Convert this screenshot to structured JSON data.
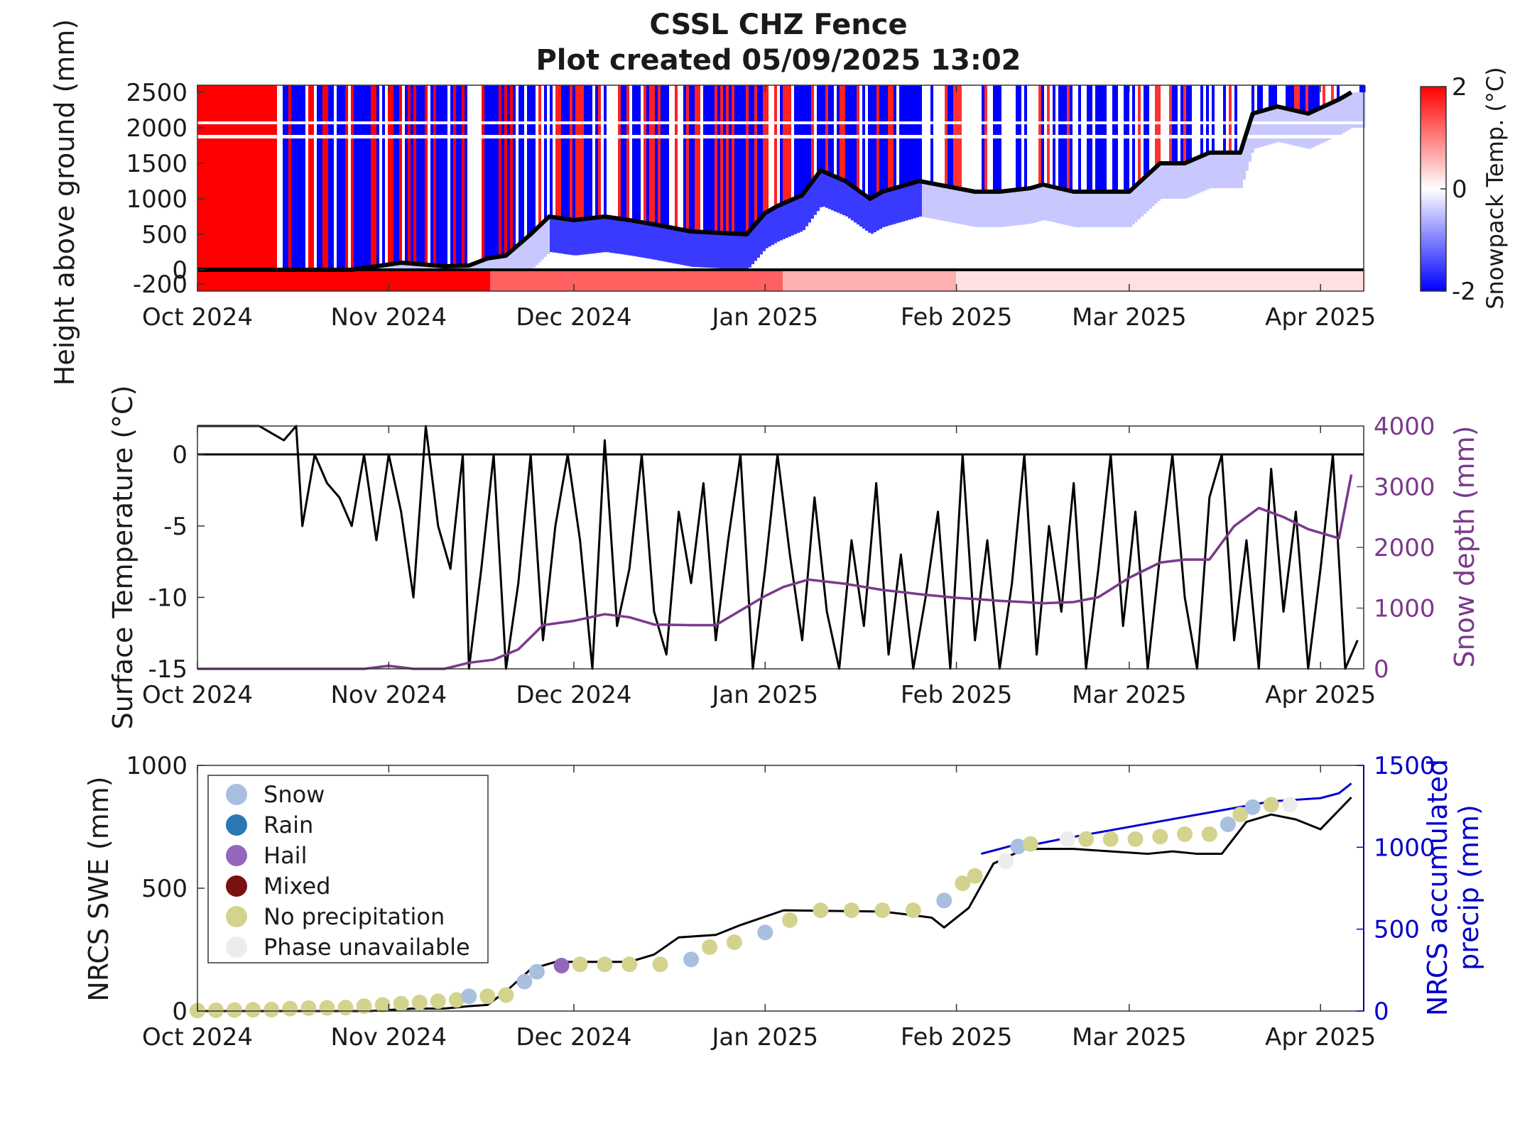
{
  "title_line1": "CSSL CHZ Fence",
  "title_line2": "Plot created 05/09/2025 13:02",
  "months": [
    "Oct 2024",
    "Nov 2024",
    "Dec 2024",
    "Jan 2025",
    "Feb 2025",
    "Mar 2025",
    "Apr 2025"
  ],
  "colors": {
    "warm": "#ff0000",
    "cold": "#0000ff",
    "snow_depth": "#7a3a8c",
    "precip": "#0000cc",
    "swe": "#000000"
  },
  "chart_data": [
    {
      "type": "heatmap",
      "ylabel": "Height above ground (mm)",
      "x_range": [
        "2024-10-01",
        "2025-04-08"
      ],
      "ylim": [
        -300,
        2600
      ],
      "yticks": [
        -200,
        0,
        500,
        1000,
        1500,
        2000,
        2500
      ],
      "colorbar": {
        "label": "Snowpack Temp. (°C)",
        "min": -2,
        "max": 2,
        "ticks": [
          -2,
          0,
          2
        ],
        "colors": [
          "#0000ff",
          "#ffffff",
          "#ff0000"
        ]
      },
      "snow_depth_line": {
        "x": [
          "2024-10-01",
          "2024-10-26",
          "2024-10-30",
          "2024-11-03",
          "2024-11-10",
          "2024-11-14",
          "2024-11-17",
          "2024-11-20",
          "2024-11-24",
          "2024-11-27",
          "2024-12-01",
          "2024-12-06",
          "2024-12-10",
          "2024-12-14",
          "2024-12-20",
          "2024-12-29",
          "2025-01-01",
          "2025-01-03",
          "2025-01-07",
          "2025-01-10",
          "2025-01-14",
          "2025-01-18",
          "2025-01-20",
          "2025-01-26",
          "2025-02-01",
          "2025-02-04",
          "2025-02-08",
          "2025-02-13",
          "2025-02-15",
          "2025-02-20",
          "2025-02-24",
          "2025-03-01",
          "2025-03-06",
          "2025-03-10",
          "2025-03-14",
          "2025-03-19",
          "2025-03-21",
          "2025-03-25",
          "2025-03-30",
          "2025-04-04",
          "2025-04-06"
        ],
        "y": [
          0,
          0,
          50,
          100,
          50,
          60,
          160,
          200,
          500,
          750,
          700,
          750,
          700,
          640,
          540,
          500,
          800,
          900,
          1050,
          1400,
          1250,
          1000,
          1100,
          1250,
          1150,
          1100,
          1100,
          1150,
          1200,
          1100,
          1100,
          1100,
          1500,
          1500,
          1650,
          1650,
          2200,
          2300,
          2200,
          2400,
          2500
        ]
      }
    },
    {
      "type": "line",
      "ylabel": "Surface Temperature (°C)",
      "ylabel_right": "Snow depth (mm)",
      "x_range": [
        "2024-10-01",
        "2025-04-08"
      ],
      "ylim": [
        -15,
        2
      ],
      "yticks": [
        -15,
        -10,
        -5,
        0
      ],
      "ylim_right": [
        0,
        4000
      ],
      "yticks_right": [
        0,
        1000,
        2000,
        3000,
        4000
      ],
      "snow_depth": {
        "x": [
          "2024-10-01",
          "2024-10-28",
          "2024-11-01",
          "2024-11-05",
          "2024-11-10",
          "2024-11-14",
          "2024-11-18",
          "2024-11-22",
          "2024-11-26",
          "2024-12-01",
          "2024-12-06",
          "2024-12-10",
          "2024-12-14",
          "2024-12-20",
          "2024-12-24",
          "2025-01-01",
          "2025-01-04",
          "2025-01-08",
          "2025-01-14",
          "2025-01-20",
          "2025-01-26",
          "2025-02-01",
          "2025-02-04",
          "2025-02-08",
          "2025-02-12",
          "2025-02-15",
          "2025-02-20",
          "2025-02-24",
          "2025-03-01",
          "2025-03-06",
          "2025-03-10",
          "2025-03-14",
          "2025-03-18",
          "2025-03-22",
          "2025-03-26",
          "2025-03-30",
          "2025-04-04",
          "2025-04-06"
        ],
        "y": [
          0,
          0,
          50,
          0,
          0,
          100,
          150,
          320,
          720,
          790,
          900,
          850,
          730,
          720,
          720,
          1200,
          1350,
          1470,
          1400,
          1300,
          1230,
          1170,
          1150,
          1120,
          1100,
          1080,
          1100,
          1180,
          1500,
          1750,
          1800,
          1800,
          2350,
          2650,
          2500,
          2300,
          2150,
          3200
        ]
      },
      "surface_temperature": {
        "x": [
          "2024-10-01",
          "2024-10-11",
          "2024-10-13",
          "2024-10-15",
          "2024-10-17",
          "2024-10-18",
          "2024-10-20",
          "2024-10-22",
          "2024-10-24",
          "2024-10-26",
          "2024-10-28",
          "2024-10-30",
          "2024-11-01",
          "2024-11-03",
          "2024-11-05",
          "2024-11-07",
          "2024-11-09",
          "2024-11-11",
          "2024-11-13",
          "2024-11-14",
          "2024-11-16",
          "2024-11-18",
          "2024-11-20",
          "2024-11-22",
          "2024-11-24",
          "2024-11-26",
          "2024-11-28",
          "2024-11-30",
          "2024-12-02",
          "2024-12-04",
          "2024-12-06",
          "2024-12-08",
          "2024-12-10",
          "2024-12-12",
          "2024-12-14",
          "2024-12-16",
          "2024-12-18",
          "2024-12-20",
          "2024-12-22",
          "2024-12-24",
          "2024-12-26",
          "2024-12-28",
          "2024-12-30",
          "2025-01-01",
          "2025-01-03",
          "2025-01-05",
          "2025-01-07",
          "2025-01-09",
          "2025-01-11",
          "2025-01-13",
          "2025-01-15",
          "2025-01-17",
          "2025-01-19",
          "2025-01-21",
          "2025-01-23",
          "2025-01-25",
          "2025-01-27",
          "2025-01-29",
          "2025-01-31",
          "2025-02-02",
          "2025-02-04",
          "2025-02-06",
          "2025-02-08",
          "2025-02-10",
          "2025-02-12",
          "2025-02-14",
          "2025-02-16",
          "2025-02-18",
          "2025-02-20",
          "2025-02-22",
          "2025-02-24",
          "2025-02-26",
          "2025-02-28",
          "2025-03-02",
          "2025-03-04",
          "2025-03-06",
          "2025-03-08",
          "2025-03-10",
          "2025-03-12",
          "2025-03-14",
          "2025-03-16",
          "2025-03-18",
          "2025-03-20",
          "2025-03-22",
          "2025-03-24",
          "2025-03-26",
          "2025-03-28",
          "2025-03-30",
          "2025-04-01",
          "2025-04-03",
          "2025-04-05",
          "2025-04-07"
        ],
        "y": [
          2,
          2,
          1.5,
          1,
          2,
          -5,
          0,
          -2,
          -3,
          -5,
          0,
          -6,
          0,
          -4,
          -10,
          2,
          -5,
          -8,
          0,
          -15,
          -8,
          0,
          -15,
          -9,
          0,
          -13,
          -5,
          0,
          -6,
          -15,
          1,
          -12,
          -8,
          0,
          -11,
          -14,
          -4,
          -9,
          -2,
          -13,
          -6,
          0,
          -15,
          -8,
          0,
          -7,
          -13,
          -3,
          -11,
          -15,
          -6,
          -12,
          -2,
          -14,
          -7,
          -15,
          -10,
          -4,
          -15,
          0,
          -13,
          -6,
          -15,
          -9,
          0,
          -14,
          -5,
          -11,
          -2,
          -15,
          -8,
          0,
          -12,
          -4,
          -15,
          -7,
          0,
          -10,
          -15,
          -3,
          0,
          -13,
          -6,
          -15,
          -1,
          -11,
          -4,
          -15,
          -8,
          0,
          -15,
          -13
        ]
      }
    },
    {
      "type": "scatter",
      "ylabel": "NRCS SWE (mm)",
      "ylabel_right": "NRCS accumulated precip (mm)",
      "x_range": [
        "2024-10-01",
        "2025-04-08"
      ],
      "ylim": [
        0,
        1000
      ],
      "yticks": [
        0,
        500,
        1000
      ],
      "ylim_right": [
        0,
        1500
      ],
      "yticks_right": [
        0,
        500,
        1000,
        1500
      ],
      "legend_position": "top-left",
      "legend": [
        {
          "label": "Snow",
          "color": "#a9bfe0"
        },
        {
          "label": "Rain",
          "color": "#2a78b4"
        },
        {
          "label": "Hail",
          "color": "#9467bd"
        },
        {
          "label": "Mixed",
          "color": "#7a1010"
        },
        {
          "label": "No precipitation",
          "color": "#d4d38e"
        },
        {
          "label": "Phase unavailable",
          "color": "#ececec"
        }
      ],
      "swe": {
        "x": [
          "2024-10-01",
          "2024-10-29",
          "2024-11-05",
          "2024-11-10",
          "2024-11-14",
          "2024-11-17",
          "2024-11-20",
          "2024-11-24",
          "2024-11-28",
          "2024-12-01",
          "2024-12-10",
          "2024-12-14",
          "2024-12-18",
          "2024-12-24",
          "2024-12-28",
          "2025-01-04",
          "2025-01-20",
          "2025-01-25",
          "2025-01-28",
          "2025-01-30",
          "2025-02-03",
          "2025-02-07",
          "2025-02-12",
          "2025-02-16",
          "2025-02-20",
          "2025-02-26",
          "2025-03-04",
          "2025-03-08",
          "2025-03-12",
          "2025-03-16",
          "2025-03-20",
          "2025-03-24",
          "2025-03-28",
          "2025-04-01",
          "2025-04-06"
        ],
        "y": [
          0,
          0,
          10,
          10,
          20,
          25,
          80,
          170,
          200,
          200,
          200,
          230,
          300,
          310,
          350,
          410,
          405,
          390,
          380,
          340,
          420,
          600,
          660,
          660,
          660,
          650,
          640,
          650,
          640,
          640,
          770,
          800,
          780,
          740,
          870
        ]
      },
      "precip_right": {
        "x": [
          "2025-02-05",
          "2025-02-10",
          "2025-02-14",
          "2025-02-18",
          "2025-03-24",
          "2025-03-28",
          "2025-04-01",
          "2025-04-04",
          "2025-04-06"
        ],
        "y": [
          960,
          1010,
          1020,
          1050,
          1280,
          1290,
          1300,
          1330,
          1390
        ]
      },
      "points": [
        {
          "x": "2024-10-01",
          "y": 2,
          "phase": "No precipitation"
        },
        {
          "x": "2024-10-04",
          "y": 3,
          "phase": "No precipitation"
        },
        {
          "x": "2024-10-07",
          "y": 4,
          "phase": "No precipitation"
        },
        {
          "x": "2024-10-10",
          "y": 5,
          "phase": "No precipitation"
        },
        {
          "x": "2024-10-13",
          "y": 6,
          "phase": "No precipitation"
        },
        {
          "x": "2024-10-16",
          "y": 10,
          "phase": "No precipitation"
        },
        {
          "x": "2024-10-19",
          "y": 12,
          "phase": "No precipitation"
        },
        {
          "x": "2024-10-22",
          "y": 13,
          "phase": "No precipitation"
        },
        {
          "x": "2024-10-25",
          "y": 14,
          "phase": "No precipitation"
        },
        {
          "x": "2024-10-28",
          "y": 20,
          "phase": "No precipitation"
        },
        {
          "x": "2024-10-31",
          "y": 25,
          "phase": "No precipitation"
        },
        {
          "x": "2024-11-03",
          "y": 30,
          "phase": "No precipitation"
        },
        {
          "x": "2024-11-06",
          "y": 35,
          "phase": "No precipitation"
        },
        {
          "x": "2024-11-09",
          "y": 40,
          "phase": "No precipitation"
        },
        {
          "x": "2024-11-12",
          "y": 45,
          "phase": "No precipitation"
        },
        {
          "x": "2024-11-14",
          "y": 60,
          "phase": "Snow"
        },
        {
          "x": "2024-11-17",
          "y": 60,
          "phase": "No precipitation"
        },
        {
          "x": "2024-11-20",
          "y": 65,
          "phase": "No precipitation"
        },
        {
          "x": "2024-11-23",
          "y": 120,
          "phase": "Snow"
        },
        {
          "x": "2024-11-25",
          "y": 160,
          "phase": "Snow"
        },
        {
          "x": "2024-11-29",
          "y": 185,
          "phase": "Hail"
        },
        {
          "x": "2024-12-02",
          "y": 190,
          "phase": "No precipitation"
        },
        {
          "x": "2024-12-06",
          "y": 190,
          "phase": "No precipitation"
        },
        {
          "x": "2024-12-10",
          "y": 190,
          "phase": "No precipitation"
        },
        {
          "x": "2024-12-15",
          "y": 190,
          "phase": "No precipitation"
        },
        {
          "x": "2024-12-20",
          "y": 210,
          "phase": "Snow"
        },
        {
          "x": "2024-12-23",
          "y": 260,
          "phase": "No precipitation"
        },
        {
          "x": "2024-12-27",
          "y": 280,
          "phase": "No precipitation"
        },
        {
          "x": "2025-01-01",
          "y": 320,
          "phase": "Snow"
        },
        {
          "x": "2025-01-05",
          "y": 370,
          "phase": "No precipitation"
        },
        {
          "x": "2025-01-10",
          "y": 410,
          "phase": "No precipitation"
        },
        {
          "x": "2025-01-15",
          "y": 410,
          "phase": "No precipitation"
        },
        {
          "x": "2025-01-20",
          "y": 410,
          "phase": "No precipitation"
        },
        {
          "x": "2025-01-25",
          "y": 410,
          "phase": "No precipitation"
        },
        {
          "x": "2025-01-30",
          "y": 450,
          "phase": "Snow"
        },
        {
          "x": "2025-02-02",
          "y": 520,
          "phase": "No precipitation"
        },
        {
          "x": "2025-02-04",
          "y": 550,
          "phase": "No precipitation"
        },
        {
          "x": "2025-02-09",
          "y": 610,
          "phase": "Phase unavailable"
        },
        {
          "x": "2025-02-11",
          "y": 670,
          "phase": "Snow"
        },
        {
          "x": "2025-02-13",
          "y": 680,
          "phase": "No precipitation"
        },
        {
          "x": "2025-02-19",
          "y": 700,
          "phase": "Phase unavailable"
        },
        {
          "x": "2025-02-22",
          "y": 700,
          "phase": "No precipitation"
        },
        {
          "x": "2025-02-26",
          "y": 700,
          "phase": "No precipitation"
        },
        {
          "x": "2025-03-02",
          "y": 700,
          "phase": "No precipitation"
        },
        {
          "x": "2025-03-06",
          "y": 710,
          "phase": "No precipitation"
        },
        {
          "x": "2025-03-10",
          "y": 720,
          "phase": "No precipitation"
        },
        {
          "x": "2025-03-14",
          "y": 720,
          "phase": "No precipitation"
        },
        {
          "x": "2025-03-17",
          "y": 760,
          "phase": "Snow"
        },
        {
          "x": "2025-03-19",
          "y": 800,
          "phase": "No precipitation"
        },
        {
          "x": "2025-03-21",
          "y": 830,
          "phase": "Snow"
        },
        {
          "x": "2025-03-24",
          "y": 840,
          "phase": "No precipitation"
        },
        {
          "x": "2025-03-27",
          "y": 840,
          "phase": "Phase unavailable"
        }
      ]
    }
  ]
}
